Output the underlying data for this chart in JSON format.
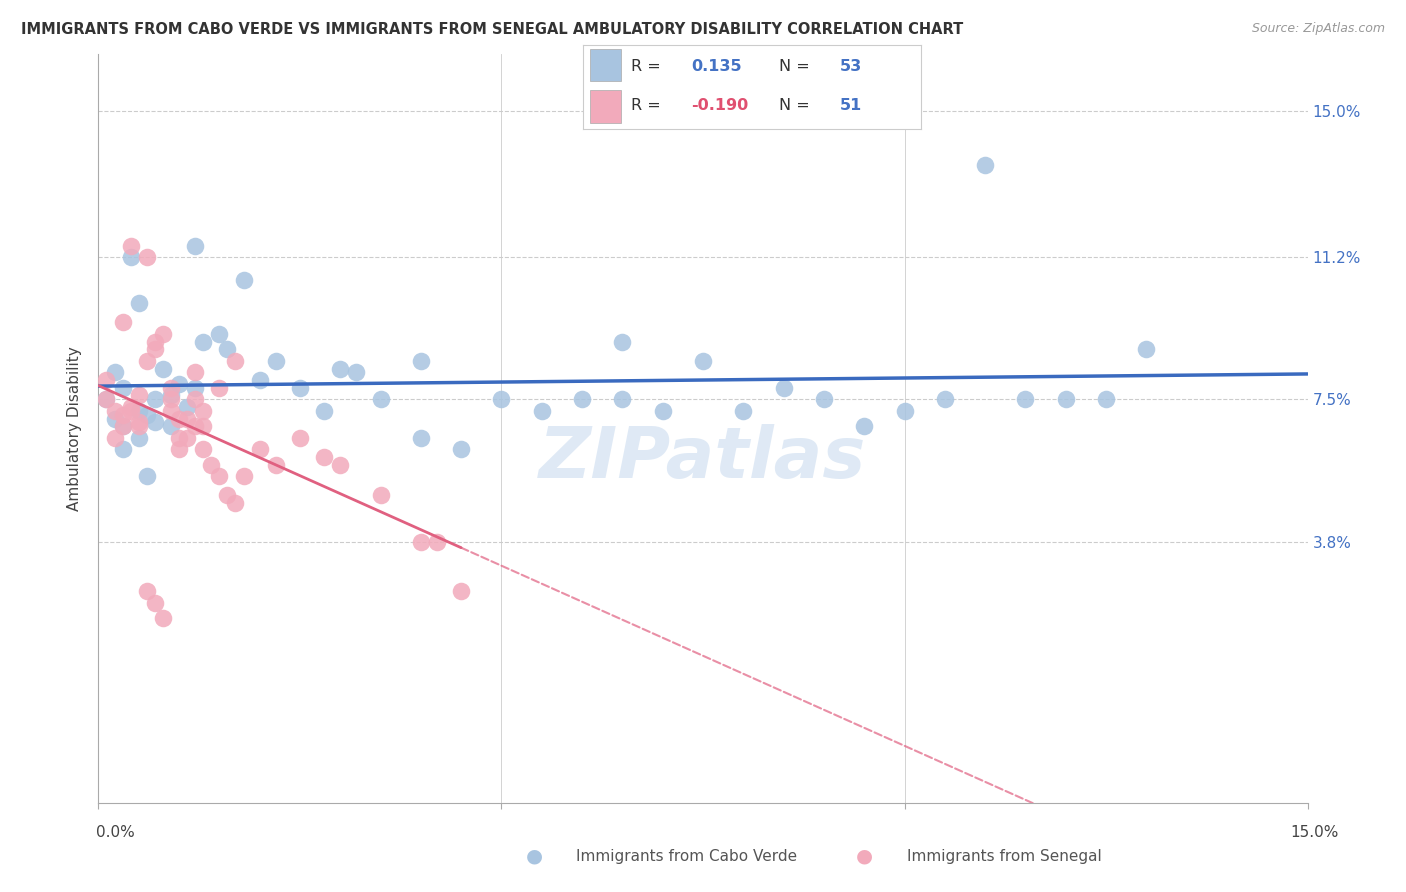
{
  "title": "IMMIGRANTS FROM CABO VERDE VS IMMIGRANTS FROM SENEGAL AMBULATORY DISABILITY CORRELATION CHART",
  "source": "Source: ZipAtlas.com",
  "ylabel": "Ambulatory Disability",
  "xmin": 0.0,
  "xmax": 0.15,
  "ymin": -0.03,
  "ymax": 0.165,
  "cabo_verde_color": "#a8c4e0",
  "senegal_color": "#f2aabb",
  "cabo_verde_line_color": "#3a6abf",
  "senegal_line_color": "#e06080",
  "R_cabo": "0.135",
  "N_cabo": "53",
  "R_senegal": "-0.190",
  "N_senegal": "51",
  "R_cabo_color": "#4472c4",
  "N_cabo_color": "#4472c4",
  "R_senegal_color": "#e05070",
  "N_senegal_color": "#4472c4",
  "watermark": "ZIPatlas",
  "ytick_vals": [
    0.038,
    0.075,
    0.112,
    0.15
  ],
  "ytick_labels": [
    "3.8%",
    "7.5%",
    "11.2%",
    "15.0%"
  ],
  "cabo_verde_x": [
    0.001,
    0.002,
    0.003,
    0.003,
    0.004,
    0.005,
    0.005,
    0.006,
    0.007,
    0.008,
    0.009,
    0.01,
    0.011,
    0.012,
    0.013,
    0.015,
    0.016,
    0.018,
    0.02,
    0.022,
    0.025,
    0.028,
    0.03,
    0.032,
    0.035,
    0.04,
    0.045,
    0.05,
    0.055,
    0.06,
    0.065,
    0.07,
    0.075,
    0.08,
    0.085,
    0.09,
    0.095,
    0.1,
    0.105,
    0.11,
    0.115,
    0.12,
    0.125,
    0.13,
    0.002,
    0.003,
    0.005,
    0.006,
    0.007,
    0.009,
    0.012,
    0.04,
    0.065
  ],
  "cabo_verde_y": [
    0.075,
    0.082,
    0.078,
    0.068,
    0.112,
    0.072,
    0.065,
    0.071,
    0.069,
    0.083,
    0.076,
    0.079,
    0.073,
    0.115,
    0.09,
    0.092,
    0.088,
    0.106,
    0.08,
    0.085,
    0.078,
    0.072,
    0.083,
    0.082,
    0.075,
    0.065,
    0.062,
    0.075,
    0.072,
    0.075,
    0.075,
    0.072,
    0.085,
    0.072,
    0.078,
    0.075,
    0.068,
    0.072,
    0.075,
    0.136,
    0.075,
    0.075,
    0.075,
    0.088,
    0.07,
    0.062,
    0.1,
    0.055,
    0.075,
    0.068,
    0.078,
    0.085,
    0.09
  ],
  "senegal_x": [
    0.001,
    0.001,
    0.002,
    0.002,
    0.003,
    0.003,
    0.004,
    0.004,
    0.005,
    0.005,
    0.006,
    0.006,
    0.007,
    0.007,
    0.008,
    0.009,
    0.009,
    0.01,
    0.01,
    0.011,
    0.012,
    0.012,
    0.013,
    0.013,
    0.014,
    0.015,
    0.016,
    0.017,
    0.018,
    0.02,
    0.022,
    0.025,
    0.028,
    0.03,
    0.035,
    0.04,
    0.045,
    0.003,
    0.004,
    0.005,
    0.006,
    0.007,
    0.008,
    0.009,
    0.01,
    0.011,
    0.012,
    0.013,
    0.015,
    0.017,
    0.042
  ],
  "senegal_y": [
    0.075,
    0.08,
    0.072,
    0.065,
    0.068,
    0.071,
    0.073,
    0.115,
    0.069,
    0.076,
    0.112,
    0.085,
    0.09,
    0.088,
    0.092,
    0.078,
    0.072,
    0.065,
    0.062,
    0.07,
    0.075,
    0.082,
    0.068,
    0.062,
    0.058,
    0.055,
    0.05,
    0.048,
    0.055,
    0.062,
    0.058,
    0.065,
    0.06,
    0.058,
    0.05,
    0.038,
    0.025,
    0.095,
    0.072,
    0.068,
    0.025,
    0.022,
    0.018,
    0.075,
    0.07,
    0.065,
    0.068,
    0.072,
    0.078,
    0.085,
    0.038
  ]
}
